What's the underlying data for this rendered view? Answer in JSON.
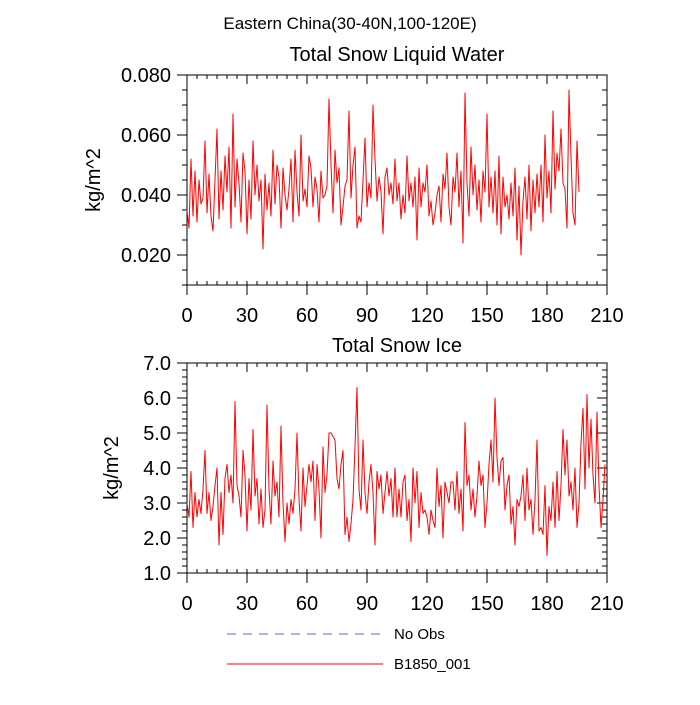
{
  "figure": {
    "suptitle": "Eastern China(30-40N,100-120E)"
  },
  "chart_data": [
    {
      "type": "line",
      "title": "Total Snow Liquid Water",
      "xlabel": "",
      "ylabel": "kg/m^2",
      "xlim": [
        0,
        210
      ],
      "ylim": [
        0.01,
        0.08
      ],
      "xticks": [
        0,
        30,
        60,
        90,
        120,
        150,
        180,
        210
      ],
      "xtick_labels": [
        "0",
        "30",
        "60",
        "90",
        "120",
        "150",
        "180",
        "210"
      ],
      "yticks": [
        0.02,
        0.04,
        0.06,
        0.08
      ],
      "ytick_labels": [
        "0.020",
        "0.040",
        "0.060",
        "0.080"
      ],
      "series": [
        {
          "name": "B1850_001",
          "color": "#ff0000",
          "values": [
            0.035,
            0.029,
            0.052,
            0.033,
            0.048,
            0.031,
            0.045,
            0.037,
            0.039,
            0.058,
            0.034,
            0.047,
            0.033,
            0.028,
            0.045,
            0.062,
            0.032,
            0.048,
            0.035,
            0.053,
            0.041,
            0.056,
            0.029,
            0.067,
            0.036,
            0.052,
            0.044,
            0.031,
            0.054,
            0.048,
            0.027,
            0.045,
            0.032,
            0.058,
            0.04,
            0.05,
            0.038,
            0.045,
            0.022,
            0.047,
            0.035,
            0.044,
            0.033,
            0.055,
            0.037,
            0.05,
            0.046,
            0.029,
            0.049,
            0.04,
            0.035,
            0.042,
            0.052,
            0.031,
            0.055,
            0.041,
            0.033,
            0.06,
            0.038,
            0.042,
            0.036,
            0.053,
            0.049,
            0.036,
            0.046,
            0.042,
            0.031,
            0.048,
            0.039,
            0.04,
            0.043,
            0.072,
            0.05,
            0.034,
            0.055,
            0.044,
            0.049,
            0.03,
            0.036,
            0.043,
            0.045,
            0.068,
            0.039,
            0.05,
            0.056,
            0.029,
            0.033,
            0.031,
            0.045,
            0.059,
            0.036,
            0.044,
            0.039,
            0.07,
            0.052,
            0.038,
            0.046,
            0.041,
            0.027,
            0.046,
            0.049,
            0.04,
            0.044,
            0.037,
            0.052,
            0.038,
            0.044,
            0.032,
            0.04,
            0.034,
            0.053,
            0.038,
            0.044,
            0.036,
            0.046,
            0.025,
            0.049,
            0.036,
            0.044,
            0.041,
            0.05,
            0.033,
            0.038,
            0.03,
            0.034,
            0.04,
            0.043,
            0.031,
            0.047,
            0.042,
            0.054,
            0.036,
            0.03,
            0.046,
            0.041,
            0.054,
            0.036,
            0.048,
            0.024,
            0.074,
            0.044,
            0.033,
            0.056,
            0.04,
            0.05,
            0.035,
            0.045,
            0.031,
            0.048,
            0.041,
            0.067,
            0.036,
            0.046,
            0.034,
            0.048,
            0.03,
            0.053,
            0.027,
            0.046,
            0.036,
            0.04,
            0.032,
            0.044,
            0.033,
            0.049,
            0.025,
            0.043,
            0.02,
            0.038,
            0.046,
            0.032,
            0.05,
            0.028,
            0.045,
            0.034,
            0.047,
            0.036,
            0.05,
            0.031,
            0.06,
            0.039,
            0.048,
            0.034,
            0.068,
            0.042,
            0.054,
            0.048,
            0.062,
            0.044,
            0.042,
            0.029,
            0.075,
            0.053,
            0.034,
            0.03,
            0.058,
            0.041
          ]
        }
      ]
    },
    {
      "type": "line",
      "title": "Total Snow Ice",
      "xlabel": "",
      "ylabel": "kg/m^2",
      "xlim": [
        0,
        210
      ],
      "ylim": [
        1.0,
        7.0
      ],
      "xticks": [
        0,
        30,
        60,
        90,
        120,
        150,
        180,
        210
      ],
      "xtick_labels": [
        "0",
        "30",
        "60",
        "90",
        "120",
        "150",
        "180",
        "210"
      ],
      "yticks": [
        1.0,
        2.0,
        3.0,
        4.0,
        5.0,
        6.0,
        7.0
      ],
      "ytick_labels": [
        "1.0",
        "2.0",
        "3.0",
        "4.0",
        "5.0",
        "6.0",
        "7.0"
      ],
      "series": [
        {
          "name": "B1850_001",
          "color": "#ff0000",
          "values": [
            3.0,
            2.6,
            3.9,
            2.3,
            3.3,
            2.6,
            3.1,
            2.7,
            3.4,
            4.5,
            2.7,
            3.3,
            2.5,
            2.9,
            3.5,
            4.0,
            1.8,
            3.3,
            2.1,
            3.7,
            4.1,
            3.3,
            3.8,
            3.0,
            5.9,
            3.5,
            3.2,
            2.6,
            4.5,
            3.8,
            2.2,
            3.7,
            2.8,
            5.1,
            3.2,
            3.7,
            2.4,
            3.4,
            2.3,
            2.8,
            5.8,
            3.4,
            2.4,
            4.2,
            3.2,
            3.6,
            2.6,
            5.2,
            3.0,
            1.9,
            3.0,
            2.4,
            3.1,
            2.7,
            3.4,
            5.0,
            3.1,
            2.2,
            4.0,
            2.9,
            3.5,
            4.1,
            3.6,
            4.2,
            2.5,
            4.1,
            3.4,
            2.0,
            4.6,
            3.3,
            3.8,
            5.0,
            5.0,
            4.9,
            4.8,
            3.7,
            3.4,
            4.1,
            4.5,
            2.1,
            2.6,
            1.9,
            2.4,
            3.1,
            4.6,
            6.3,
            3.4,
            2.8,
            4.8,
            3.3,
            2.7,
            3.6,
            4.1,
            3.3,
            1.8,
            3.9,
            3.4,
            3.8,
            2.7,
            3.3,
            3.9,
            3.2,
            3.7,
            2.6,
            4.0,
            2.6,
            3.4,
            2.6,
            3.6,
            3.8,
            2.5,
            3.1,
            1.9,
            4.0,
            3.0,
            3.9,
            2.3,
            3.3,
            2.7,
            2.8,
            2.6,
            2.1,
            2.8,
            2.5,
            2.3,
            4.0,
            2.9,
            3.5,
            2.0,
            3.6,
            3.3,
            3.0,
            3.6,
            3.6,
            2.8,
            3.9,
            2.7,
            3.4,
            2.2,
            5.3,
            3.5,
            3.8,
            2.8,
            3.4,
            2.6,
            3.2,
            4.2,
            3.5,
            3.8,
            2.3,
            3.0,
            4.1,
            4.8,
            3.6,
            6.0,
            4.3,
            3.5,
            4.2,
            4.3,
            2.8,
            3.5,
            3.8,
            2.4,
            2.9,
            1.8,
            3.1,
            2.9,
            3.2,
            3.8,
            2.5,
            4.0,
            2.8,
            3.1,
            2.1,
            3.1,
            4.8,
            2.2,
            2.3,
            2.1,
            3.5,
            1.5,
            2.9,
            2.5,
            3.6,
            2.3,
            3.9,
            2.5,
            3.5,
            5.1,
            3.8,
            4.8,
            3.2,
            3.6,
            2.8,
            4.0,
            2.3,
            3.0,
            4.7,
            5.7,
            3.4,
            6.1,
            4.0,
            5.4,
            3.8,
            3.0,
            5.6,
            3.5,
            2.3,
            3.1,
            4.1
          ]
        }
      ]
    }
  ],
  "legend": {
    "position": "bottom-center",
    "entries": [
      {
        "label": "No Obs",
        "color": "#5566cc",
        "style": "dashed"
      },
      {
        "label": "B1850_001",
        "color": "#ff0000",
        "style": "solid"
      }
    ]
  }
}
